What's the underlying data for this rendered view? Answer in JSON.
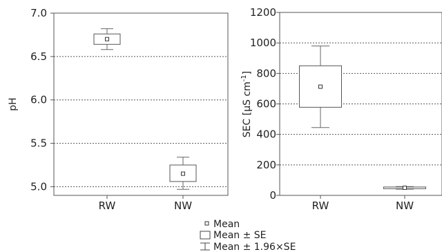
{
  "chart_data": [
    {
      "type": "box",
      "ylabel": "pH",
      "categories": [
        "RW",
        "NW"
      ],
      "ylim": [
        4.9,
        7.0
      ],
      "yticks": [
        "7.0",
        "6.5",
        "6.0",
        "5.5",
        "5.0"
      ],
      "ytick_values": [
        7.0,
        6.5,
        6.0,
        5.5,
        5.0
      ],
      "series": [
        {
          "category": "RW",
          "mean": 6.7,
          "se_low": 6.64,
          "se_high": 6.76,
          "ci_low": 6.58,
          "ci_high": 6.82
        },
        {
          "category": "NW",
          "mean": 5.15,
          "se_low": 5.06,
          "se_high": 5.25,
          "ci_low": 4.97,
          "ci_high": 5.34
        }
      ],
      "grid": true
    },
    {
      "type": "box",
      "ylabel_main": "SEC [µS cm",
      "ylabel_sup": "-1",
      "ylabel_end": "]",
      "categories": [
        "RW",
        "NW"
      ],
      "ylim": [
        0,
        1200
      ],
      "yticks": [
        "1200",
        "1000",
        "800",
        "600",
        "400",
        "200",
        "0"
      ],
      "ytick_values": [
        1200,
        1000,
        800,
        600,
        400,
        200,
        0
      ],
      "series": [
        {
          "category": "RW",
          "mean": 713,
          "se_low": 578,
          "se_high": 850,
          "ci_low": 445,
          "ci_high": 980
        },
        {
          "category": "NW",
          "mean": 50,
          "se_low": 44,
          "se_high": 55,
          "ci_low": 41,
          "ci_high": 58
        }
      ],
      "grid": true
    }
  ],
  "legend": {
    "mean_label": "Mean",
    "se_label": "Mean ± SE",
    "ci_label": "Mean ± 1.96×SE"
  }
}
